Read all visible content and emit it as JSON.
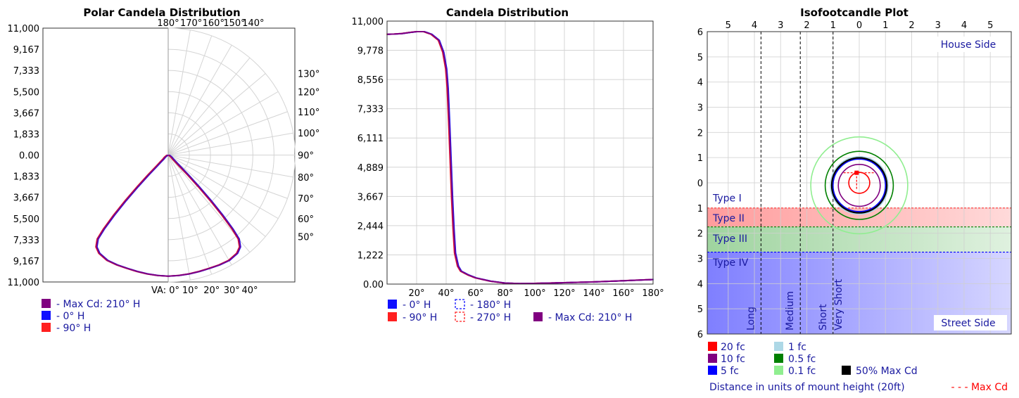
{
  "colors": {
    "max_cd": "#800080",
    "h0": "#1010ff",
    "h90": "#ff2020",
    "axis_text": "#000000",
    "legend_text": "#1a1aa0",
    "grid": "#d4d4d4",
    "iso_20": "#ff0000",
    "iso_10": "#800080",
    "iso_5": "#0000ff",
    "iso_1": "#add8e6",
    "iso_05": "#008000",
    "iso_01": "#90ee90",
    "iso_50max": "#000000",
    "type2_band": "#ffb3b3",
    "type3_band": "#b3e0b3",
    "type4_band": "#9999ff"
  },
  "chart_data": [
    {
      "type": "line",
      "subtype": "polar",
      "title": "Polar Candela Distribution",
      "r_ticks": [
        "11,000",
        "9,167",
        "7,333",
        "5,500",
        "3,667",
        "1,833",
        "0.00",
        "1,833",
        "3,667",
        "5,500",
        "7,333",
        "9,167",
        "11,000"
      ],
      "r_max": 11000,
      "angle_labels_top": [
        "180°",
        "170°",
        "160°",
        "150°",
        "140°"
      ],
      "angle_labels_right": [
        "130°",
        "120°",
        "110°",
        "100°",
        "90°",
        "80°",
        "70°",
        "60°",
        "50°"
      ],
      "angle_labels_bottom": [
        "VA: 0°",
        "10°",
        "20°",
        "30°",
        "40°"
      ],
      "series": [
        {
          "name": "- Max Cd: 210° H",
          "color_key": "max_cd",
          "angles": [
            0,
            5,
            10,
            15,
            20,
            25,
            30,
            35,
            38,
            40,
            41,
            42,
            43,
            44,
            45,
            46,
            48,
            50,
            55,
            60,
            70,
            80,
            90
          ],
          "values": [
            10500,
            10480,
            10460,
            10440,
            10450,
            10500,
            10540,
            10400,
            10100,
            9500,
            8500,
            7000,
            5400,
            3800,
            2400,
            1400,
            800,
            560,
            380,
            250,
            110,
            60,
            40
          ]
        },
        {
          "name": "- 0° H",
          "color_key": "h0",
          "angles": [
            0,
            5,
            10,
            15,
            20,
            25,
            30,
            35,
            38,
            40,
            41,
            42,
            43,
            44,
            45,
            46,
            48,
            50,
            55,
            60,
            70,
            80,
            90
          ],
          "values": [
            10500,
            10480,
            10460,
            10440,
            10450,
            10500,
            10540,
            10400,
            10100,
            9500,
            8500,
            7000,
            5400,
            3800,
            2400,
            1400,
            800,
            560,
            380,
            250,
            110,
            60,
            40
          ]
        },
        {
          "name": "- 90° H",
          "color_key": "h90",
          "angles": [
            0,
            5,
            10,
            15,
            20,
            25,
            30,
            35,
            38,
            40,
            41,
            42,
            43,
            44,
            45,
            46,
            48,
            50,
            55,
            60,
            70,
            80,
            90
          ],
          "values": [
            10500,
            10480,
            10460,
            10440,
            10450,
            10500,
            10540,
            10400,
            10100,
            9500,
            8500,
            7000,
            5400,
            3800,
            2400,
            1400,
            800,
            560,
            380,
            250,
            110,
            60,
            40
          ]
        }
      ]
    },
    {
      "type": "line",
      "title": "Candela Distribution",
      "xlim": [
        0,
        180
      ],
      "ylim": [
        0,
        11000
      ],
      "x_ticks": [
        "20°",
        "40°",
        "60°",
        "80°",
        "100°",
        "120°",
        "140°",
        "160°",
        "180°"
      ],
      "y_ticks": [
        "0.00",
        "1,222",
        "2,444",
        "3,667",
        "4,889",
        "6,111",
        "7,333",
        "8,556",
        "9,778",
        "11,000"
      ],
      "grid": true,
      "series": [
        {
          "name": "- 0° H",
          "color_key": "h0",
          "x": [
            0,
            5,
            10,
            15,
            20,
            25,
            30,
            35,
            38,
            40,
            41,
            42,
            43,
            44,
            45,
            46,
            48,
            50,
            55,
            60,
            70,
            80,
            90,
            100,
            120,
            140,
            160,
            180
          ],
          "values": [
            10450,
            10460,
            10480,
            10520,
            10560,
            10560,
            10450,
            10200,
            9700,
            9000,
            8200,
            6800,
            5200,
            3600,
            2300,
            1300,
            750,
            540,
            380,
            260,
            120,
            40,
            20,
            30,
            60,
            90,
            140,
            190
          ]
        },
        {
          "name": "- 90° H",
          "color_key": "h90",
          "x": [
            0,
            5,
            10,
            15,
            20,
            25,
            30,
            35,
            38,
            40,
            41,
            42,
            43,
            44,
            45,
            46,
            48,
            50,
            55,
            60,
            70,
            80,
            90,
            100,
            120,
            140,
            160,
            180
          ],
          "values": [
            10450,
            10460,
            10480,
            10520,
            10560,
            10560,
            10450,
            10200,
            9700,
            9000,
            8200,
            6800,
            5200,
            3600,
            2300,
            1300,
            750,
            540,
            380,
            260,
            120,
            40,
            20,
            30,
            60,
            90,
            140,
            190
          ]
        },
        {
          "name": "- 180° H",
          "color_key": "h0",
          "dashed": true,
          "x": [
            0,
            5,
            10,
            15,
            20,
            25,
            30,
            35,
            38,
            40,
            41,
            42,
            43,
            44,
            45,
            46,
            48,
            50,
            55,
            60,
            70,
            80,
            90,
            100,
            120,
            140,
            160,
            180
          ],
          "values": [
            10450,
            10460,
            10480,
            10520,
            10560,
            10560,
            10450,
            10200,
            9700,
            9000,
            8200,
            6800,
            5200,
            3600,
            2300,
            1300,
            750,
            540,
            380,
            260,
            120,
            40,
            20,
            30,
            60,
            90,
            140,
            190
          ]
        },
        {
          "name": "- 270° H",
          "color_key": "h90",
          "dashed": true,
          "x": [
            0,
            5,
            10,
            15,
            20,
            25,
            30,
            35,
            38,
            40,
            41,
            42,
            43,
            44,
            45,
            46,
            48,
            50,
            55,
            60,
            70,
            80,
            90,
            100,
            120,
            140,
            160,
            180
          ],
          "values": [
            10450,
            10460,
            10480,
            10520,
            10560,
            10560,
            10450,
            10200,
            9700,
            9000,
            8200,
            6800,
            5200,
            3600,
            2300,
            1300,
            750,
            540,
            380,
            260,
            120,
            40,
            20,
            30,
            60,
            90,
            140,
            190
          ]
        },
        {
          "name": "- Max Cd: 210° H",
          "color_key": "max_cd",
          "x": [
            0,
            5,
            10,
            15,
            20,
            25,
            30,
            35,
            38,
            40,
            41,
            42,
            43,
            44,
            45,
            46,
            48,
            50,
            55,
            60,
            70,
            80,
            90,
            100,
            120,
            140,
            160,
            180
          ],
          "values": [
            10450,
            10460,
            10480,
            10520,
            10560,
            10560,
            10450,
            10200,
            9700,
            9000,
            8200,
            6800,
            5200,
            3600,
            2300,
            1300,
            750,
            540,
            380,
            260,
            120,
            40,
            20,
            30,
            60,
            90,
            140,
            190
          ]
        }
      ]
    },
    {
      "type": "scatter",
      "subtype": "isofootcandle",
      "title": "Isofootcandle Plot",
      "xlim": [
        -5.8,
        5.8
      ],
      "ylim": [
        6,
        -6
      ],
      "x_ticks": [
        "5",
        "4",
        "3",
        "2",
        "1",
        "0",
        "1",
        "2",
        "3",
        "4",
        "5"
      ],
      "y_ticks": [
        "6",
        "5",
        "4",
        "3",
        "2",
        "1",
        "0",
        "1",
        "2",
        "3",
        "4",
        "5",
        "6"
      ],
      "corner_labels": {
        "top_right": "House Side",
        "bottom_right": "Street Side"
      },
      "type_bands": [
        {
          "label": "Type I",
          "from": 1,
          "to": 1
        },
        {
          "label": "Type II",
          "from": 1,
          "to": 1.75,
          "color_key": "type2_band"
        },
        {
          "label": "Type III",
          "from": 1.75,
          "to": 2.75,
          "color_key": "type3_band"
        },
        {
          "label": "Type IV",
          "from": 2.75,
          "to": 6,
          "color_key": "type4_band"
        }
      ],
      "range_lines": [
        {
          "label": "Long",
          "x": -3.75
        },
        {
          "label": "Medium",
          "x": -2.25
        },
        {
          "label": "Short",
          "x": -1.0
        },
        {
          "label": "Very Short",
          "x": -1.0
        }
      ],
      "contours": [
        {
          "name": "20 fc",
          "color_key": "iso_20",
          "cx": 0,
          "cy": 0,
          "rx": 0.4,
          "ry": 0.4
        },
        {
          "name": "10 fc",
          "color_key": "iso_10",
          "cx": 0,
          "cy": 0.1,
          "rx": 0.8,
          "ry": 0.8
        },
        {
          "name": "5 fc",
          "color_key": "iso_5",
          "cx": 0,
          "cy": 0.1,
          "rx": 1.0,
          "ry": 1.0
        },
        {
          "name": "1 fc",
          "color_key": "iso_1",
          "cx": 0,
          "cy": 0.1,
          "rx": 1.1,
          "ry": 1.1
        },
        {
          "name": "0.5 fc",
          "color_key": "iso_05",
          "cx": 0,
          "cy": 0.1,
          "rx": 1.3,
          "ry": 1.3
        },
        {
          "name": "0.1 fc",
          "color_key": "iso_01",
          "cx": 0,
          "cy": 0.1,
          "rx": 1.85,
          "ry": 1.85
        },
        {
          "name": "50% Max Cd",
          "color_key": "iso_50max",
          "cx": 0,
          "cy": 0.1,
          "rx": 1.05,
          "ry": 1.05
        }
      ],
      "max_cd_marker": {
        "x": -0.1,
        "y": -0.4
      },
      "footer": "Distance in units of mount height (20ft)",
      "max_cd_label": "- - - Max Cd"
    }
  ]
}
